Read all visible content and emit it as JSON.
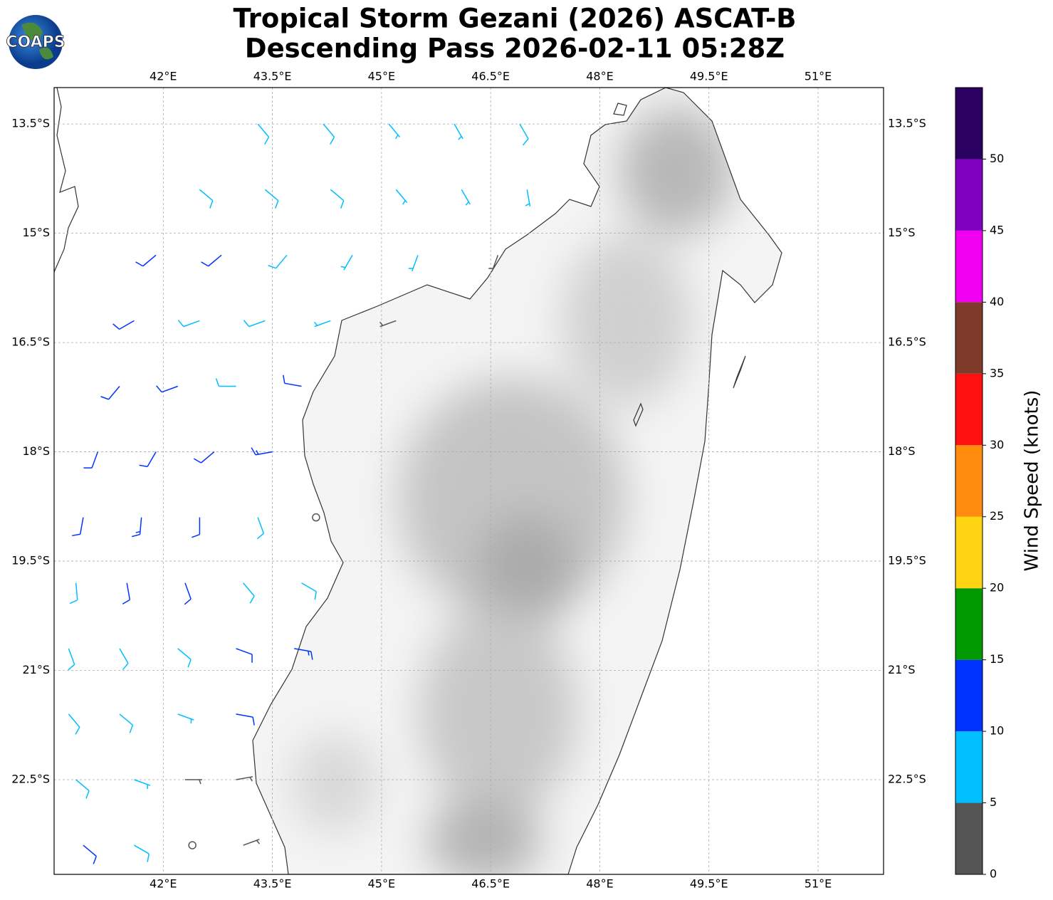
{
  "chart_data": {
    "type": "barbs",
    "logo_text": "COAPS",
    "title": [
      "Tropical Storm Gezani (2026) ASCAT-B",
      "Descending Pass 2026-02-11 05:28Z"
    ],
    "xlim": [
      40.5,
      51.9
    ],
    "ylim": [
      -23.8,
      -13.0
    ],
    "xticks": [
      {
        "value": 42,
        "label": "42°E"
      },
      {
        "value": 43.5,
        "label": "43.5°E"
      },
      {
        "value": 45,
        "label": "45°E"
      },
      {
        "value": 46.5,
        "label": "46.5°E"
      },
      {
        "value": 48,
        "label": "48°E"
      },
      {
        "value": 49.5,
        "label": "49.5°E"
      },
      {
        "value": 51,
        "label": "51°E"
      }
    ],
    "yticks": [
      {
        "value": -13.5,
        "label": "13.5°S"
      },
      {
        "value": -15,
        "label": "15°S"
      },
      {
        "value": -16.5,
        "label": "16.5°S"
      },
      {
        "value": -18,
        "label": "18°S"
      },
      {
        "value": -19.5,
        "label": "19.5°S"
      },
      {
        "value": -21,
        "label": "21°S"
      },
      {
        "value": -22.5,
        "label": "22.5°S"
      }
    ],
    "grid": true,
    "colorbar": {
      "label": "Wind Speed (knots)",
      "lim": [
        0,
        55
      ],
      "bounds": [
        0,
        5,
        10,
        15,
        20,
        25,
        30,
        35,
        40,
        45,
        50,
        55
      ],
      "colors": [
        "#555555",
        "#00bfff",
        "#0033ff",
        "#009900",
        "#ffd513",
        "#ff8c0d",
        "#ff1010",
        "#7f3a2a",
        "#f000f0",
        "#8000c0",
        "#2a0060"
      ],
      "ticks": [
        0,
        5,
        10,
        15,
        20,
        25,
        30,
        35,
        40,
        45,
        50
      ]
    },
    "barbs": [
      {
        "lon": 43.3,
        "lat": -13.5,
        "speed": 8,
        "direction": 140
      },
      {
        "lon": 44.2,
        "lat": -13.5,
        "speed": 8,
        "direction": 140
      },
      {
        "lon": 45.1,
        "lat": -13.5,
        "speed": 7,
        "direction": 140
      },
      {
        "lon": 46.0,
        "lat": -13.5,
        "speed": 7,
        "direction": 150
      },
      {
        "lon": 46.9,
        "lat": -13.5,
        "speed": 8,
        "direction": 150
      },
      {
        "lon": 42.5,
        "lat": -14.4,
        "speed": 9,
        "direction": 130
      },
      {
        "lon": 43.4,
        "lat": -14.4,
        "speed": 8,
        "direction": 130
      },
      {
        "lon": 44.3,
        "lat": -14.4,
        "speed": 8,
        "direction": 130
      },
      {
        "lon": 45.2,
        "lat": -14.4,
        "speed": 7,
        "direction": 140
      },
      {
        "lon": 46.1,
        "lat": -14.4,
        "speed": 7,
        "direction": 150
      },
      {
        "lon": 47.0,
        "lat": -14.4,
        "speed": 6,
        "direction": 170
      },
      {
        "lon": 41.9,
        "lat": -15.3,
        "speed": 11,
        "direction": 230
      },
      {
        "lon": 42.8,
        "lat": -15.3,
        "speed": 10,
        "direction": 230
      },
      {
        "lon": 43.7,
        "lat": -15.3,
        "speed": 8,
        "direction": 220
      },
      {
        "lon": 44.6,
        "lat": -15.3,
        "speed": 7,
        "direction": 210
      },
      {
        "lon": 45.5,
        "lat": -15.3,
        "speed": 6,
        "direction": 200
      },
      {
        "lon": 46.6,
        "lat": -15.3,
        "speed": 3,
        "direction": 200
      },
      {
        "lon": 41.6,
        "lat": -16.2,
        "speed": 11,
        "direction": 240
      },
      {
        "lon": 42.5,
        "lat": -16.2,
        "speed": 9,
        "direction": 250
      },
      {
        "lon": 43.4,
        "lat": -16.2,
        "speed": 8,
        "direction": 250
      },
      {
        "lon": 44.3,
        "lat": -16.2,
        "speed": 7,
        "direction": 250
      },
      {
        "lon": 45.2,
        "lat": -16.2,
        "speed": 3,
        "direction": 250
      },
      {
        "lon": 41.4,
        "lat": -17.1,
        "speed": 12,
        "direction": 220
      },
      {
        "lon": 42.2,
        "lat": -17.1,
        "speed": 11,
        "direction": 250
      },
      {
        "lon": 43.0,
        "lat": -17.1,
        "speed": 9,
        "direction": 270
      },
      {
        "lon": 43.9,
        "lat": -17.1,
        "speed": 12,
        "direction": 280
      },
      {
        "lon": 41.1,
        "lat": -18.0,
        "speed": 11,
        "direction": 200
      },
      {
        "lon": 41.9,
        "lat": -18.0,
        "speed": 12,
        "direction": 210
      },
      {
        "lon": 42.7,
        "lat": -18.0,
        "speed": 11,
        "direction": 230
      },
      {
        "lon": 43.5,
        "lat": -18.0,
        "speed": 13,
        "direction": 260
      },
      {
        "lon": 40.9,
        "lat": -18.9,
        "speed": 12,
        "direction": 190
      },
      {
        "lon": 41.7,
        "lat": -18.9,
        "speed": 13,
        "direction": 185
      },
      {
        "lon": 42.5,
        "lat": -18.9,
        "speed": 12,
        "direction": 180
      },
      {
        "lon": 43.3,
        "lat": -18.9,
        "speed": 9,
        "direction": 160
      },
      {
        "lon": 44.1,
        "lat": -18.9,
        "speed": 2,
        "direction": 0
      },
      {
        "lon": 40.8,
        "lat": -19.8,
        "speed": 9,
        "direction": 175
      },
      {
        "lon": 41.5,
        "lat": -19.8,
        "speed": 12,
        "direction": 170
      },
      {
        "lon": 42.3,
        "lat": -19.8,
        "speed": 11,
        "direction": 160
      },
      {
        "lon": 43.1,
        "lat": -19.8,
        "speed": 9,
        "direction": 140
      },
      {
        "lon": 43.9,
        "lat": -19.8,
        "speed": 8,
        "direction": 120
      },
      {
        "lon": 40.7,
        "lat": -20.7,
        "speed": 8,
        "direction": 160
      },
      {
        "lon": 41.4,
        "lat": -20.7,
        "speed": 9,
        "direction": 150
      },
      {
        "lon": 42.2,
        "lat": -20.7,
        "speed": 8,
        "direction": 130
      },
      {
        "lon": 43.0,
        "lat": -20.7,
        "speed": 12,
        "direction": 110
      },
      {
        "lon": 43.8,
        "lat": -20.7,
        "speed": 13,
        "direction": 100
      },
      {
        "lon": 40.7,
        "lat": -21.6,
        "speed": 8,
        "direction": 140
      },
      {
        "lon": 41.4,
        "lat": -21.6,
        "speed": 8,
        "direction": 130
      },
      {
        "lon": 42.2,
        "lat": -21.6,
        "speed": 6,
        "direction": 110
      },
      {
        "lon": 43.0,
        "lat": -21.6,
        "speed": 11,
        "direction": 100
      },
      {
        "lon": 40.8,
        "lat": -22.5,
        "speed": 9,
        "direction": 130
      },
      {
        "lon": 41.6,
        "lat": -22.5,
        "speed": 6,
        "direction": 110
      },
      {
        "lon": 42.3,
        "lat": -22.5,
        "speed": 3,
        "direction": 90
      },
      {
        "lon": 43.0,
        "lat": -22.5,
        "speed": 3,
        "direction": 80
      },
      {
        "lon": 40.9,
        "lat": -23.4,
        "speed": 12,
        "direction": 130
      },
      {
        "lon": 41.6,
        "lat": -23.4,
        "speed": 8,
        "direction": 120
      },
      {
        "lon": 42.4,
        "lat": -23.4,
        "speed": 2,
        "direction": 0
      },
      {
        "lon": 43.1,
        "lat": -23.4,
        "speed": 3,
        "direction": 70
      }
    ]
  }
}
